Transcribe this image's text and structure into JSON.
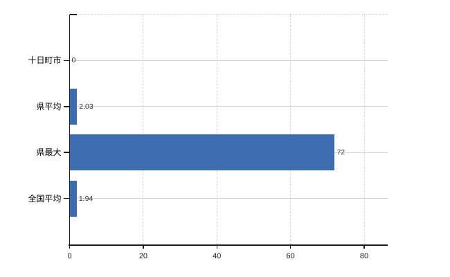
{
  "chart_data": {
    "type": "bar",
    "orientation": "horizontal",
    "title": "",
    "xlabel": "",
    "ylabel": "",
    "categories": [
      "十日町市",
      "県平均",
      "県最大",
      "全国平均"
    ],
    "values": [
      0,
      2.03,
      72,
      1.94
    ],
    "value_labels": [
      "0",
      "2.03",
      "72",
      "1.94"
    ],
    "x_ticks": [
      0,
      20,
      40,
      60,
      80
    ],
    "x_tick_labels": [
      "0",
      "20",
      "40",
      "60",
      "80"
    ],
    "xlim": [
      0,
      86.4
    ],
    "legend": "none",
    "grid": {
      "horizontal": "solid line at each category row center",
      "vertical": "dashed line at each x tick",
      "top_border": "dashed line at top of plot area"
    },
    "colors": {
      "bar": "#3E6CB0",
      "grid": "#D4D4D4",
      "axis": "#1A1A1A",
      "category_label": "#000000",
      "value_label": "#333333",
      "background": "#FFFFFF"
    }
  }
}
